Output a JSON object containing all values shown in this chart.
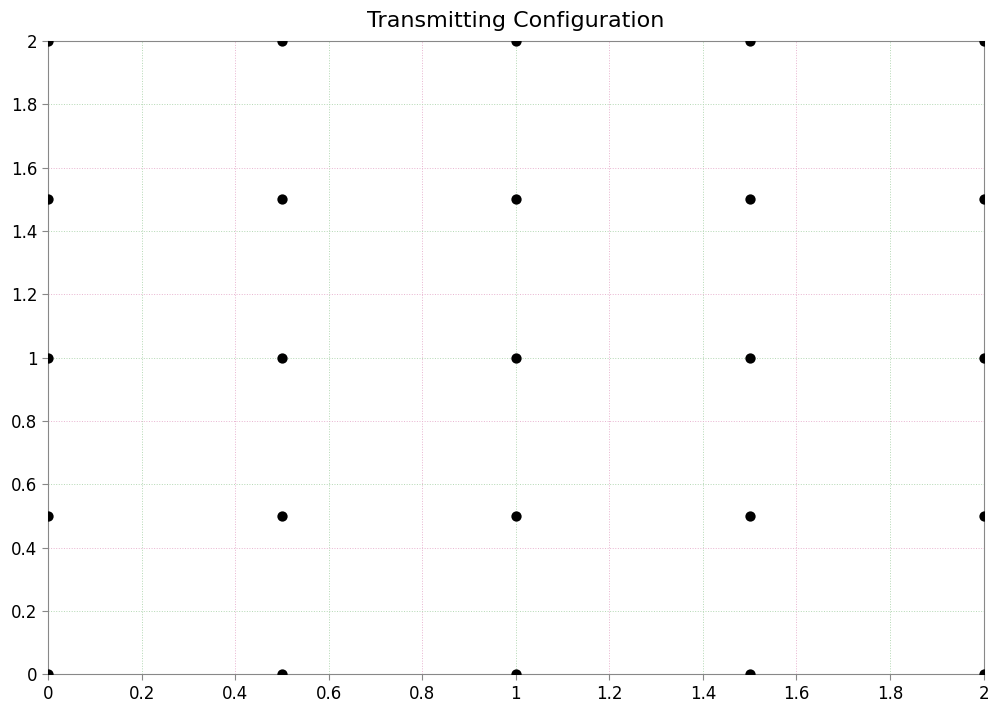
{
  "title": "Transmitting Configuration",
  "title_fontsize": 16,
  "x_points": [
    0,
    0,
    0,
    0,
    0,
    0.5,
    0.5,
    0.5,
    0.5,
    0.5,
    1,
    1,
    1,
    1,
    1,
    1.5,
    1.5,
    1.5,
    1.5,
    1.5,
    2,
    2,
    2,
    2,
    2
  ],
  "y_points": [
    0,
    0.5,
    1,
    1.5,
    2,
    0,
    0.5,
    1,
    1.5,
    2,
    0,
    0.5,
    1,
    1.5,
    2,
    0,
    0.5,
    1,
    1.5,
    2,
    0,
    0.5,
    1,
    1.5,
    2
  ],
  "marker_color": "#000000",
  "marker_size": 55,
  "xlim": [
    0,
    2
  ],
  "ylim": [
    0,
    2
  ],
  "xticks": [
    0,
    0.2,
    0.4,
    0.6,
    0.8,
    1.0,
    1.2,
    1.4,
    1.6,
    1.8,
    2.0
  ],
  "yticks": [
    0,
    0.2,
    0.4,
    0.6,
    0.8,
    1.0,
    1.2,
    1.4,
    1.6,
    1.8,
    2.0
  ],
  "grid_color_pink": "#e8b4d0",
  "grid_color_green": "#b4d8b4",
  "grid_linestyle": ":",
  "grid_linewidth": 0.7,
  "bg_color": "#ffffff",
  "figsize": [
    10.0,
    7.14
  ]
}
